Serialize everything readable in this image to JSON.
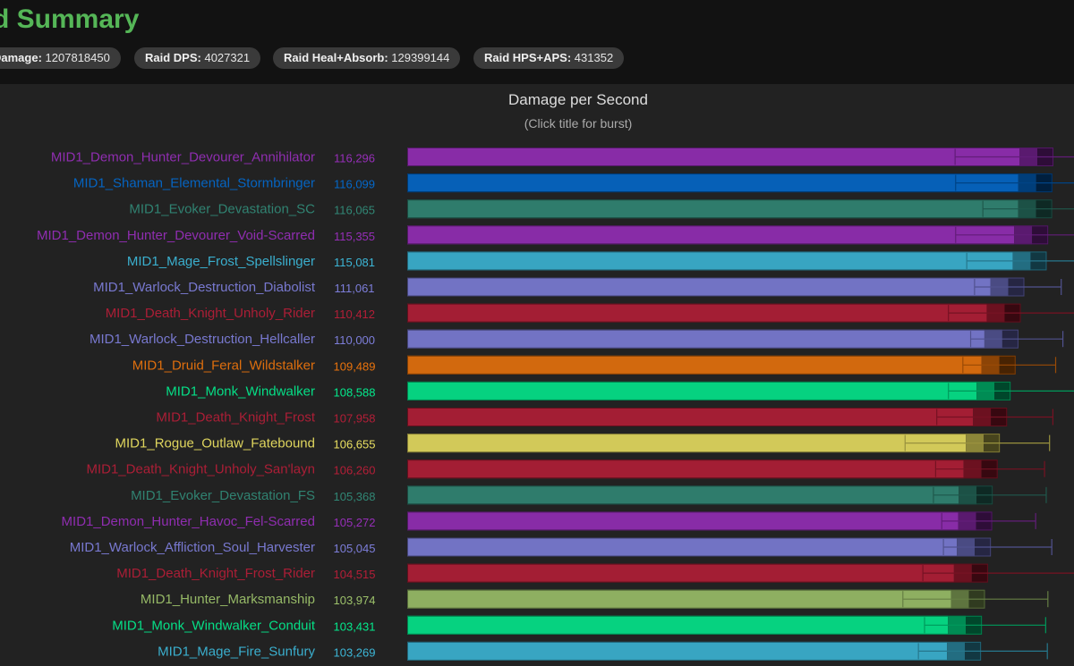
{
  "header": {
    "title": "d Summary",
    "stats": [
      {
        "label": "Damage:",
        "value": "1207818450"
      },
      {
        "label": "Raid DPS:",
        "value": "4027321"
      },
      {
        "label": "Raid Heal+Absorb:",
        "value": "129399144"
      },
      {
        "label": "Raid HPS+APS:",
        "value": "431352"
      }
    ]
  },
  "chart_data": {
    "type": "bar",
    "orientation": "horizontal",
    "title": "Damage per Second",
    "subtitle": "(Click title for burst)",
    "xlim": [
      0,
      120000
    ],
    "categories": [
      "MID1_Demon_Hunter_Devourer_Annihilator",
      "MID1_Shaman_Elemental_Stormbringer",
      "MID1_Evoker_Devastation_SC",
      "MID1_Demon_Hunter_Devourer_Void-Scarred",
      "MID1_Mage_Frost_Spellslinger",
      "MID1_Warlock_Destruction_Diabolist",
      "MID1_Death_Knight_Unholy_Rider",
      "MID1_Warlock_Destruction_Hellcaller",
      "MID1_Druid_Feral_Wildstalker",
      "MID1_Monk_Windwalker",
      "MID1_Death_Knight_Frost",
      "MID1_Rogue_Outlaw_Fatebound",
      "MID1_Death_Knight_Unholy_San'layn",
      "MID1_Evoker_Devastation_FS",
      "MID1_Demon_Hunter_Havoc_Fel-Scarred",
      "MID1_Warlock_Affliction_Soul_Harvester",
      "MID1_Death_Knight_Frost_Rider",
      "MID1_Hunter_Marksmanship",
      "MID1_Monk_Windwalker_Conduit",
      "MID1_Mage_Fire_Sunfury"
    ],
    "value_labels": [
      "116,296",
      "116,099",
      "116,065",
      "115,355",
      "115,081",
      "111,061",
      "110,412",
      "110,000",
      "109,489",
      "108,588",
      "107,958",
      "106,655",
      "106,260",
      "105,368",
      "105,272",
      "105,045",
      "104,515",
      "103,974",
      "103,431",
      "103,269"
    ],
    "values": [
      116296,
      116099,
      116065,
      115355,
      115081,
      111061,
      110412,
      110000,
      109489,
      108588,
      107958,
      106655,
      106260,
      105368,
      105272,
      105045,
      104515,
      103974,
      103431,
      103269
    ],
    "error_low": [
      98600,
      98700,
      103600,
      98700,
      100700,
      102100,
      97400,
      101400,
      100000,
      97400,
      95300,
      89600,
      95100,
      94700,
      96200,
      96500,
      92800,
      89200,
      93100,
      92000
    ],
    "error_high": [
      121500,
      121300,
      124700,
      121300,
      120300,
      117700,
      124500,
      118000,
      116700,
      124300,
      116200,
      115600,
      114700,
      115000,
      113100,
      116000,
      120300,
      115300,
      114900,
      115200
    ],
    "colors": [
      "#a330c9",
      "#0070dd",
      "#33937f",
      "#a330c9",
      "#3fc7eb",
      "#8788ee",
      "#c41e3a",
      "#8788ee",
      "#ff7c0a",
      "#00ff98",
      "#c41e3a",
      "#fff468",
      "#c41e3a",
      "#33937f",
      "#a330c9",
      "#8788ee",
      "#c41e3a",
      "#aad372",
      "#00ff98",
      "#3fc7eb"
    ]
  }
}
